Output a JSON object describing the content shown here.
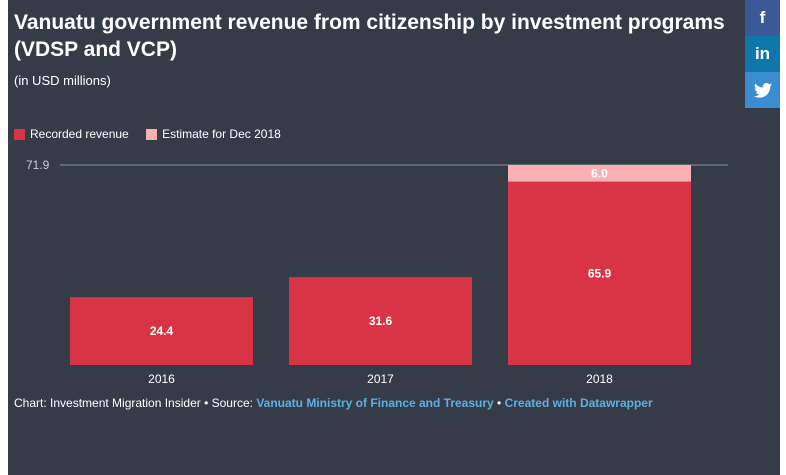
{
  "header": {
    "title": "Vanuatu government revenue from citizenship by investment programs (VDSP and VCP)",
    "subtitle": "(in USD millions)"
  },
  "legend": {
    "recorded_label": "Recorded revenue",
    "estimate_label": "Estimate for Dec 2018"
  },
  "share": {
    "facebook": "f",
    "linkedin": "in",
    "twitter": "🐦"
  },
  "colors": {
    "recorded": "#d93445",
    "estimate": "#f8b0b2",
    "background": "#353c48"
  },
  "chart_data": {
    "type": "bar",
    "stacked": true,
    "categories": [
      "2016",
      "2017",
      "2018"
    ],
    "series": [
      {
        "name": "Recorded revenue",
        "values": [
          24.4,
          31.6,
          65.9
        ]
      },
      {
        "name": "Estimate for Dec 2018",
        "values": [
          0,
          0,
          6.0
        ]
      }
    ],
    "ylim": [
      0,
      71.9
    ],
    "y_ticks": [
      71.9
    ],
    "y_tick_labels": [
      "71.9"
    ],
    "grid": true,
    "legend_position": "top-left"
  },
  "footer": {
    "prefix": "Chart: Investment Migration Insider • Source: ",
    "source_link": "Vanuatu Ministry of Finance and Treasury",
    "separator": " • ",
    "created_link": "Created with Datawrapper"
  }
}
